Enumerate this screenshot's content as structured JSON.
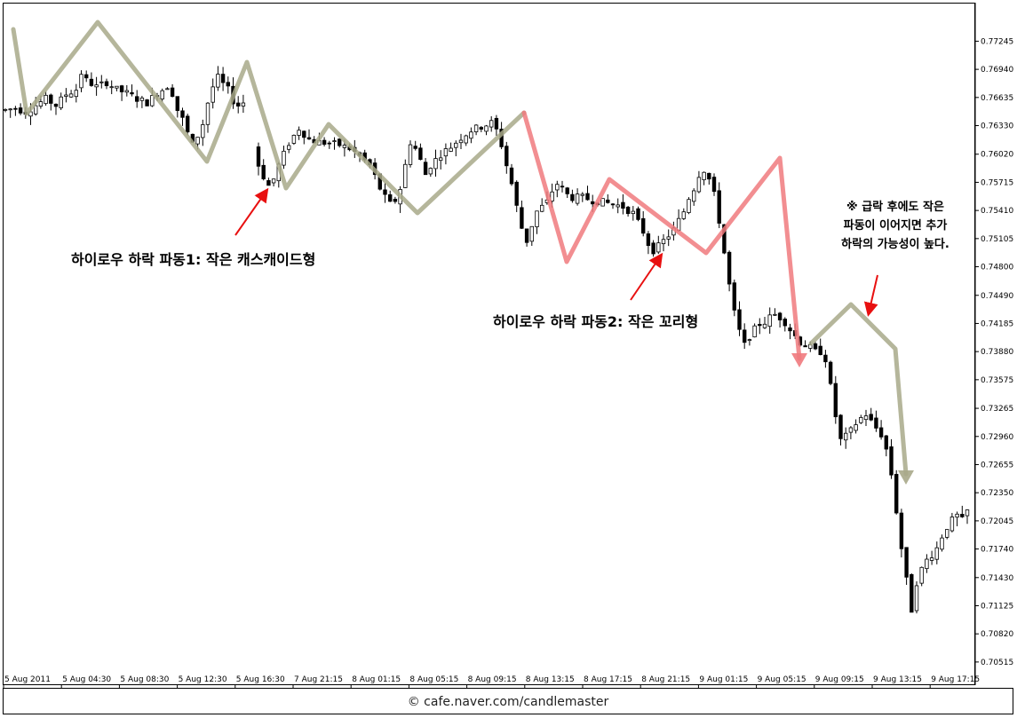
{
  "chart_data": {
    "type": "candlestick",
    "ylim": [
      0.7036,
      0.7748
    ],
    "y_ticks": [
      "0.77245",
      "0.76940",
      "0.76635",
      "0.76330",
      "0.76020",
      "0.75715",
      "0.75410",
      "0.75105",
      "0.74800",
      "0.74490",
      "0.74185",
      "0.73880",
      "0.73575",
      "0.73265",
      "0.72960",
      "0.72655",
      "0.72350",
      "0.72045",
      "0.71740",
      "0.71430",
      "0.71125",
      "0.70820",
      "0.70515"
    ],
    "x_ticks": [
      "5 Aug 2011",
      "5 Aug 04:30",
      "5 Aug 08:30",
      "5 Aug 12:30",
      "5 Aug 16:30",
      "7 Aug 21:15",
      "8 Aug 01:15",
      "8 Aug 05:15",
      "8 Aug 09:15",
      "8 Aug 13:15",
      "8 Aug 17:15",
      "8 Aug 21:15",
      "9 Aug 01:15",
      "9 Aug 05:15",
      "9 Aug 09:15",
      "9 Aug 13:15",
      "9 Aug 17:15"
    ],
    "price_path": [
      [
        0,
        0.765
      ],
      [
        2,
        0.7652
      ],
      [
        4,
        0.7648
      ],
      [
        6,
        0.7655
      ],
      [
        8,
        0.7662
      ],
      [
        10,
        0.7655
      ],
      [
        12,
        0.7667
      ],
      [
        14,
        0.7672
      ],
      [
        15,
        0.769
      ],
      [
        16,
        0.7682
      ],
      [
        18,
        0.7675
      ],
      [
        20,
        0.768
      ],
      [
        22,
        0.7672
      ],
      [
        24,
        0.7668
      ],
      [
        26,
        0.7662
      ],
      [
        28,
        0.7658
      ],
      [
        30,
        0.7668
      ],
      [
        32,
        0.7676
      ],
      [
        33,
        0.7668
      ],
      [
        34,
        0.765
      ],
      [
        35,
        0.764
      ],
      [
        36,
        0.7625
      ],
      [
        37,
        0.7612
      ],
      [
        38,
        0.7622
      ],
      [
        39,
        0.7635
      ],
      [
        40,
        0.7658
      ],
      [
        41,
        0.7675
      ],
      [
        42,
        0.7685
      ],
      [
        43,
        0.7678
      ],
      [
        44,
        0.7672
      ],
      [
        45,
        0.766
      ],
      [
        46,
        0.7655
      ],
      [
        47,
        0.7658
      ],
      [
        50,
        0.759
      ],
      [
        51,
        0.7578
      ],
      [
        52,
        0.7568
      ],
      [
        53,
        0.7575
      ],
      [
        54,
        0.759
      ],
      [
        55,
        0.7602
      ],
      [
        56,
        0.7614
      ],
      [
        57,
        0.7622
      ],
      [
        58,
        0.763
      ],
      [
        59,
        0.7624
      ],
      [
        60,
        0.7618
      ],
      [
        62,
        0.7615
      ],
      [
        64,
        0.7614
      ],
      [
        66,
        0.7612
      ],
      [
        68,
        0.7608
      ],
      [
        70,
        0.76
      ],
      [
        72,
        0.759
      ],
      [
        73,
        0.7578
      ],
      [
        74,
        0.7565
      ],
      [
        75,
        0.7555
      ],
      [
        76,
        0.7548
      ],
      [
        77,
        0.7552
      ],
      [
        78,
        0.7565
      ],
      [
        79,
        0.759
      ],
      [
        80,
        0.7615
      ],
      [
        81,
        0.7608
      ],
      [
        82,
        0.7595
      ],
      [
        83,
        0.758
      ],
      [
        84,
        0.759
      ],
      [
        86,
        0.7602
      ],
      [
        88,
        0.761
      ],
      [
        90,
        0.762
      ],
      [
        92,
        0.7628
      ],
      [
        94,
        0.7632
      ],
      [
        96,
        0.7636
      ],
      [
        97,
        0.7628
      ],
      [
        98,
        0.7612
      ],
      [
        99,
        0.759
      ],
      [
        100,
        0.757
      ],
      [
        101,
        0.7545
      ],
      [
        102,
        0.7522
      ],
      [
        103,
        0.7508
      ],
      [
        104,
        0.7525
      ],
      [
        105,
        0.754
      ],
      [
        106,
        0.7545
      ],
      [
        107,
        0.755
      ],
      [
        108,
        0.7562
      ],
      [
        109,
        0.757
      ],
      [
        110,
        0.7564
      ],
      [
        111,
        0.7558
      ],
      [
        112,
        0.7555
      ],
      [
        114,
        0.7555
      ],
      [
        116,
        0.7552
      ],
      [
        118,
        0.755
      ],
      [
        120,
        0.7548
      ],
      [
        122,
        0.7545
      ],
      [
        124,
        0.7538
      ],
      [
        125,
        0.7528
      ],
      [
        126,
        0.7518
      ],
      [
        127,
        0.7505
      ],
      [
        128,
        0.7498
      ],
      [
        129,
        0.7502
      ],
      [
        130,
        0.7508
      ],
      [
        131,
        0.7514
      ],
      [
        132,
        0.752
      ],
      [
        133,
        0.753
      ],
      [
        134,
        0.754
      ],
      [
        135,
        0.7555
      ],
      [
        136,
        0.7565
      ],
      [
        137,
        0.758
      ],
      [
        138,
        0.7585
      ],
      [
        139,
        0.7575
      ],
      [
        140,
        0.7558
      ],
      [
        141,
        0.753
      ],
      [
        142,
        0.7495
      ],
      [
        143,
        0.746
      ],
      [
        144,
        0.743
      ],
      [
        145,
        0.741
      ],
      [
        146,
        0.7395
      ],
      [
        147,
        0.7405
      ],
      [
        148,
        0.7412
      ],
      [
        149,
        0.7418
      ],
      [
        150,
        0.742
      ],
      [
        151,
        0.7425
      ],
      [
        152,
        0.7428
      ],
      [
        153,
        0.7425
      ],
      [
        154,
        0.742
      ],
      [
        155,
        0.7412
      ],
      [
        156,
        0.7405
      ],
      [
        157,
        0.7398
      ],
      [
        158,
        0.7395
      ],
      [
        159,
        0.7392
      ],
      [
        160,
        0.7388
      ],
      [
        161,
        0.7388
      ],
      [
        162,
        0.738
      ],
      [
        163,
        0.735
      ],
      [
        164,
        0.7318
      ],
      [
        165,
        0.7292
      ],
      [
        166,
        0.7296
      ],
      [
        167,
        0.7302
      ],
      [
        168,
        0.731
      ],
      [
        169,
        0.7316
      ],
      [
        170,
        0.732
      ],
      [
        171,
        0.7312
      ],
      [
        172,
        0.7305
      ],
      [
        173,
        0.7298
      ],
      [
        174,
        0.7282
      ],
      [
        175,
        0.7255
      ],
      [
        176,
        0.7215
      ],
      [
        177,
        0.7175
      ],
      [
        178,
        0.714
      ],
      [
        179,
        0.7108
      ],
      [
        180,
        0.7138
      ],
      [
        181,
        0.7152
      ],
      [
        182,
        0.7162
      ],
      [
        183,
        0.7168
      ],
      [
        184,
        0.7175
      ],
      [
        185,
        0.7188
      ],
      [
        186,
        0.7198
      ],
      [
        187,
        0.7205
      ],
      [
        188,
        0.721
      ],
      [
        189,
        0.7205
      ],
      [
        190,
        0.7215
      ]
    ],
    "annotations": {
      "wave1": "하이로우 하락 파동1: 작은 캐스캐이드형",
      "wave2": "하이로우 하락 파동2: 작은 꼬리형",
      "note_line1": "※ 급락 후에도 작은",
      "note_line2": "파동이 이어지면 추가",
      "note_line3": "하락의 가능성이 높다."
    },
    "colors": {
      "grey_wave": "#a8a98a",
      "red_wave": "#f07a7e",
      "red_arrow": "#e81010",
      "candle": "#000000",
      "bull_fill": "#ffffff",
      "bear_fill": "#000000"
    }
  },
  "footer": {
    "credit": "© cafe.naver.com/candlemaster"
  }
}
